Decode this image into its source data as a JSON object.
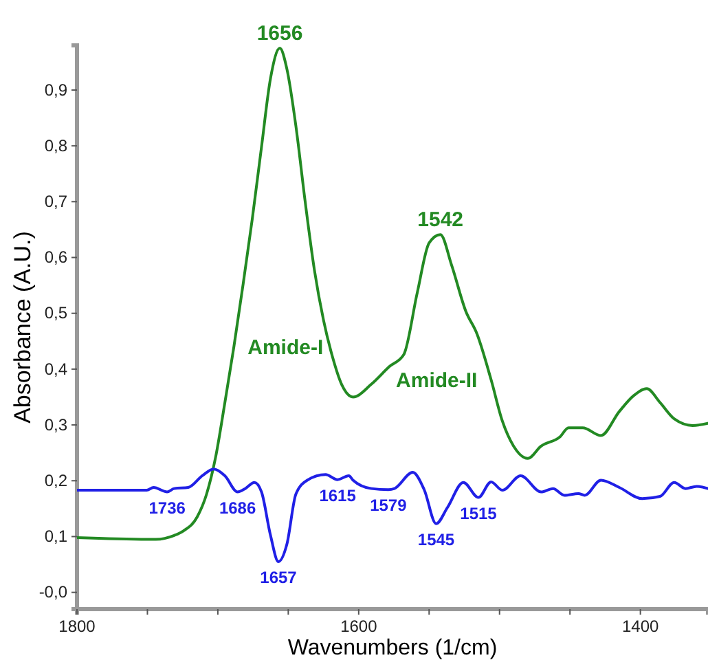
{
  "chart_data": {
    "type": "line",
    "xlabel": "Wavenumbers (1/cm)",
    "ylabel": "Absorbance (A.U.)",
    "xlim": [
      1800,
      1352
    ],
    "ylim": [
      -0.03,
      0.98
    ],
    "xticks": [
      1800,
      {
        "value": 1750,
        "label": null
      },
      {
        "value": 1700,
        "label": null
      },
      {
        "value": 1650,
        "label": null
      },
      1600,
      {
        "value": 1550,
        "label": null
      },
      {
        "value": 1500,
        "label": null
      },
      {
        "value": 1450,
        "label": null
      },
      1400
    ],
    "yticks": [
      {
        "value": 0,
        "label": "-0,0"
      },
      {
        "value": 0.1,
        "label": "0,1"
      },
      {
        "value": 0.2,
        "label": "0,2"
      },
      {
        "value": 0.3,
        "label": "0,3"
      },
      {
        "value": 0.4,
        "label": "0,4"
      },
      {
        "value": 0.5,
        "label": "0,5"
      },
      {
        "value": 0.6,
        "label": "0,6"
      },
      {
        "value": 0.7,
        "label": "0,7"
      },
      {
        "value": 0.8,
        "label": "0,8"
      },
      {
        "value": 0.9,
        "label": "0,9"
      }
    ],
    "series": [
      {
        "color": "#238a23",
        "x": [
          1800,
          1750,
          1744,
          1731,
          1724.5,
          1714.7,
          1708,
          1701.6,
          1695,
          1688.6,
          1682,
          1675.6,
          1669,
          1662.6,
          1656,
          1651,
          1644.4,
          1638,
          1631.4,
          1625,
          1618.6,
          1612,
          1604,
          1591,
          1578,
          1568,
          1558.4,
          1550,
          1542,
          1534,
          1524,
          1516,
          1506,
          1498,
          1490,
          1480,
          1470.5,
          1457,
          1451,
          1441,
          1428,
          1415,
          1405,
          1395.5,
          1386,
          1376,
          1363,
          1352
        ],
        "values": [
          0.098,
          0.095,
          0.095,
          0.102,
          0.11,
          0.135,
          0.176,
          0.242,
          0.34,
          0.44,
          0.553,
          0.668,
          0.798,
          0.921,
          0.975,
          0.938,
          0.832,
          0.7,
          0.577,
          0.488,
          0.422,
          0.372,
          0.35,
          0.373,
          0.405,
          0.426,
          0.537,
          0.626,
          0.641,
          0.586,
          0.504,
          0.463,
          0.381,
          0.307,
          0.262,
          0.24,
          0.262,
          0.279,
          0.295,
          0.295,
          0.281,
          0.324,
          0.352,
          0.365,
          0.34,
          0.311,
          0.299,
          0.303
        ]
      },
      {
        "color": "#2020e6",
        "x": [
          1800,
          1750.5,
          1745.6,
          1736,
          1731,
          1721,
          1711,
          1703,
          1695,
          1686,
          1680.5,
          1674,
          1669,
          1662.6,
          1657,
          1651,
          1644.6,
          1636.5,
          1623.5,
          1615,
          1607,
          1604,
          1591,
          1579,
          1574.6,
          1561.6,
          1553.5,
          1545,
          1537,
          1525.7,
          1515,
          1506,
          1498,
          1485,
          1470.5,
          1462,
          1454,
          1444,
          1439.5,
          1428,
          1415,
          1398.7,
          1386,
          1376,
          1368,
          1360,
          1352
        ],
        "values": [
          0.183,
          0.183,
          0.188,
          0.18,
          0.186,
          0.188,
          0.209,
          0.221,
          0.209,
          0.18,
          0.186,
          0.197,
          0.18,
          0.102,
          0.055,
          0.086,
          0.176,
          0.201,
          0.211,
          0.202,
          0.209,
          0.201,
          0.186,
          0.184,
          0.186,
          0.215,
          0.184,
          0.123,
          0.152,
          0.197,
          0.17,
          0.198,
          0.183,
          0.209,
          0.18,
          0.186,
          0.174,
          0.177,
          0.174,
          0.201,
          0.188,
          0.168,
          0.172,
          0.197,
          0.186,
          0.19,
          0.186
        ]
      }
    ],
    "annotations": [
      {
        "text": "1656",
        "x": 1656,
        "y": 0.975
      },
      {
        "text": "1542",
        "x": 1542,
        "y": 0.641
      },
      {
        "text": "Amide-I",
        "x": 1688.6,
        "y": 0.44
      },
      {
        "text": "Amide-II",
        "x": 1506,
        "y": 0.381
      },
      {
        "text": "1736",
        "x": 1736,
        "y": 0.18
      },
      {
        "text": "1686",
        "x": 1686,
        "y": 0.18
      },
      {
        "text": "1657",
        "x": 1657,
        "y": 0.055
      },
      {
        "text": "1615",
        "x": 1615,
        "y": 0.202
      },
      {
        "text": "1579",
        "x": 1579,
        "y": 0.184
      },
      {
        "text": "1545",
        "x": 1545,
        "y": 0.123
      },
      {
        "text": "1515",
        "x": 1515,
        "y": 0.17
      }
    ]
  }
}
